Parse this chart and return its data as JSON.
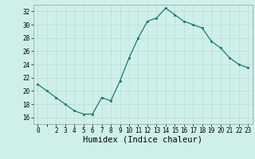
{
  "x": [
    0,
    1,
    2,
    3,
    4,
    5,
    6,
    7,
    8,
    9,
    10,
    11,
    12,
    13,
    14,
    15,
    16,
    17,
    18,
    19,
    20,
    21,
    22,
    23
  ],
  "y": [
    21,
    20,
    19,
    18,
    17,
    16.5,
    16.5,
    19,
    18.5,
    21.5,
    25,
    28,
    30.5,
    31,
    32.5,
    31.5,
    30.5,
    30,
    29.5,
    27.5,
    26.5,
    25,
    24,
    23.5
  ],
  "line_color": "#1a7a6e",
  "marker_color": "#1a7a6e",
  "bg_color": "#cff0ea",
  "grid_color": "#b8ddd8",
  "xlabel": "Humidex (Indice chaleur)",
  "ylim": [
    15,
    33
  ],
  "xlim": [
    -0.5,
    23.5
  ],
  "yticks": [
    16,
    18,
    20,
    22,
    24,
    26,
    28,
    30,
    32
  ],
  "xticks": [
    0,
    2,
    3,
    4,
    5,
    6,
    7,
    8,
    9,
    10,
    11,
    12,
    13,
    14,
    15,
    16,
    17,
    18,
    19,
    20,
    21,
    22,
    23
  ],
  "tick_fontsize": 5.5,
  "xlabel_fontsize": 7.5
}
